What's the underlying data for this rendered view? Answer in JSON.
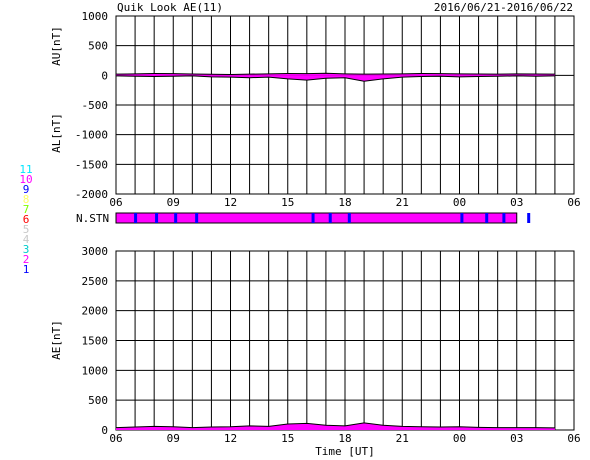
{
  "header": {
    "title": "Quik Look AE(11)",
    "date_range": "2016/06/21-2016/06/22"
  },
  "station_legend": {
    "entries": [
      {
        "label": "11",
        "color": "#00e5ff"
      },
      {
        "label": "10",
        "color": "#ff00ff"
      },
      {
        "label": "9",
        "color": "#0000ff"
      },
      {
        "label": "8",
        "color": "#ffff66"
      },
      {
        "label": "7",
        "color": "#7fff00"
      },
      {
        "label": "6",
        "color": "#ff0000"
      },
      {
        "label": "5",
        "color": "#c8c8c8"
      },
      {
        "label": "4",
        "color": "#c8c8c8"
      },
      {
        "label": "3",
        "color": "#00cccc"
      },
      {
        "label": "2",
        "color": "#ff00ff"
      },
      {
        "label": "1",
        "color": "#0000ff"
      }
    ]
  },
  "colors": {
    "fill": "#ff00ff",
    "station_marker": "#0000ff",
    "grid": "#000000",
    "background": "#ffffff"
  },
  "chart_data": [
    {
      "type": "area",
      "panel": "AU/AL",
      "ylabel_top": "AU[nT]",
      "ylabel_bottom": "AL[nT]",
      "ylim": [
        -2000,
        1000
      ],
      "yticks": [
        1000,
        500,
        0,
        -500,
        -1000,
        -1500,
        -2000
      ],
      "xlim": [
        0,
        24
      ],
      "xtick_labels": [
        "06",
        "09",
        "12",
        "15",
        "18",
        "21",
        "00",
        "03",
        "06"
      ],
      "grid": true,
      "series": [
        {
          "role": "AU",
          "x": [
            0,
            1,
            2,
            3,
            4,
            5,
            6,
            7,
            8,
            9,
            10,
            11,
            12,
            13,
            14,
            15,
            16,
            17,
            18,
            19,
            20,
            21,
            22,
            23
          ],
          "y": [
            20,
            25,
            30,
            28,
            22,
            18,
            15,
            20,
            25,
            30,
            28,
            35,
            25,
            20,
            22,
            25,
            30,
            28,
            25,
            22,
            20,
            25,
            22,
            20
          ]
        },
        {
          "role": "AL",
          "x": [
            0,
            1,
            2,
            3,
            4,
            5,
            6,
            7,
            8,
            9,
            10,
            11,
            12,
            13,
            14,
            15,
            16,
            17,
            18,
            19,
            20,
            21,
            22,
            23
          ],
          "y": [
            -10,
            -15,
            -20,
            -15,
            -10,
            -25,
            -30,
            -40,
            -30,
            -60,
            -80,
            -50,
            -40,
            -100,
            -60,
            -30,
            -20,
            -15,
            -25,
            -20,
            -15,
            -10,
            -15,
            -10
          ]
        }
      ]
    },
    {
      "type": "table",
      "panel": "N.STN",
      "label": "N.STN",
      "xlim": [
        0,
        24
      ],
      "value_level": 10,
      "change_times": [
        1.0,
        2.1,
        3.1,
        4.2,
        10.3,
        11.2,
        12.2,
        18.1,
        19.4,
        20.3,
        21.6
      ]
    },
    {
      "type": "area",
      "panel": "AE",
      "ylabel": "AE[nT]",
      "ylim": [
        0,
        3000
      ],
      "yticks": [
        3000,
        2500,
        2000,
        1500,
        1000,
        500,
        0
      ],
      "xlim": [
        0,
        24
      ],
      "xtick_labels": [
        "06",
        "09",
        "12",
        "15",
        "18",
        "21",
        "00",
        "03",
        "06"
      ],
      "xlabel": "Time [UT]",
      "grid": true,
      "series": [
        {
          "role": "AE",
          "x": [
            0,
            1,
            2,
            3,
            4,
            5,
            6,
            7,
            8,
            9,
            10,
            11,
            12,
            13,
            14,
            15,
            16,
            17,
            18,
            19,
            20,
            21,
            22,
            23
          ],
          "y": [
            40,
            50,
            60,
            55,
            40,
            50,
            55,
            70,
            60,
            100,
            110,
            80,
            70,
            120,
            80,
            60,
            55,
            50,
            55,
            45,
            40,
            40,
            40,
            35
          ]
        }
      ]
    }
  ]
}
